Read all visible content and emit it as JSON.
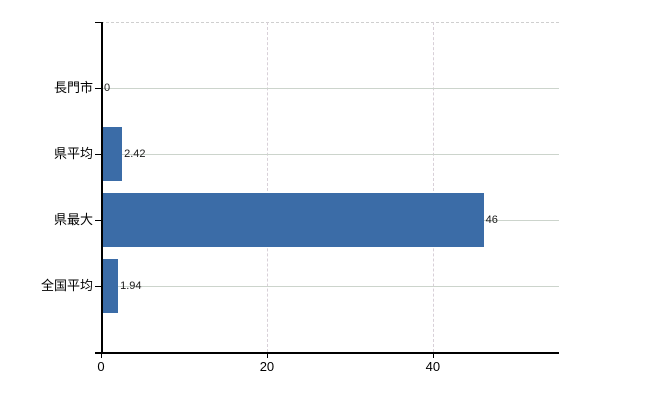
{
  "chart_data": {
    "type": "bar",
    "orientation": "horizontal",
    "title": "",
    "xlabel": "",
    "ylabel": "",
    "categories": [
      "長門市",
      "県平均",
      "県最大",
      "全国平均"
    ],
    "values": [
      0,
      2.42,
      46,
      1.94
    ],
    "value_labels": [
      "0",
      "2.42",
      "46",
      "1.94"
    ],
    "xlim": [
      0,
      55.2
    ],
    "x_ticks": [
      0,
      20,
      40
    ],
    "x_tick_labels": [
      "0",
      "20",
      "40"
    ],
    "legend_position": "none",
    "grid": {
      "vertical_lines_at": [
        20,
        40
      ],
      "vertical_style": "dashed",
      "horizontal_at_category_centers": true,
      "top_border_style": "dashed"
    },
    "colors": {
      "bar": "#3b6ca7",
      "axis": "#000000",
      "grid_horizontal": "#ccd4cc",
      "grid_vertical": "#d8d0d8",
      "top_border": "#cfcfcf",
      "text": "#000000",
      "value_label": "#1a1a1a",
      "background": "#ffffff"
    }
  }
}
